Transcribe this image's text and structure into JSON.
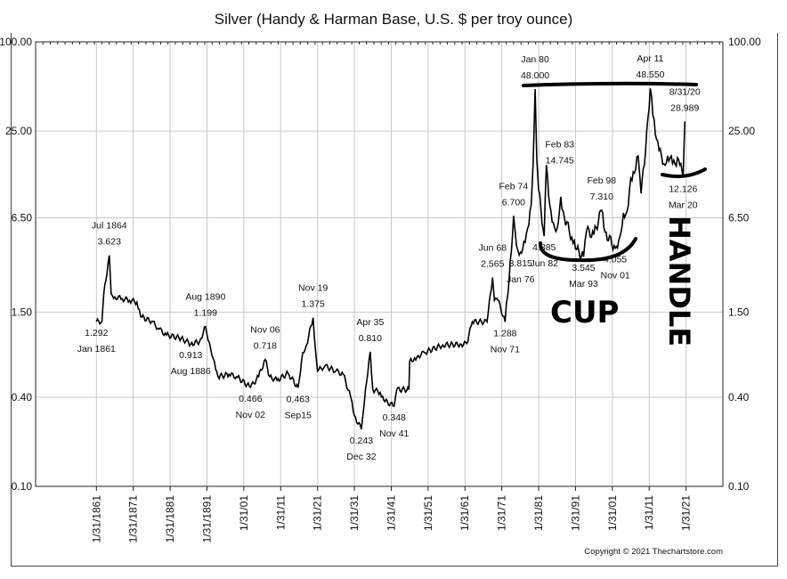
{
  "chart_data": {
    "type": "line",
    "title": "Silver (Handy & Harman Base, U.S. $ per troy ounce)",
    "xlabel": "",
    "ylabel": "",
    "y_scale": "log",
    "ylim": [
      0.1,
      100
    ],
    "xlim": [
      1844.5,
      2031
    ],
    "grid": true,
    "y_ticks": [
      "100.00",
      "25.00",
      "6.50",
      "1.50",
      "0.40",
      "0.10"
    ],
    "y_tick_values": [
      100,
      25,
      6.5,
      1.5,
      0.4,
      0.1
    ],
    "x_ticks": [
      "1/31/1861",
      "1/31/1871",
      "1/31/1881",
      "1/31/1891",
      "1/31/01",
      "1/31/11",
      "1/31/21",
      "1/31/31",
      "1/31/41",
      "1/31/51",
      "1/31/61",
      "1/31/71",
      "1/31/81",
      "1/31/91",
      "1/31/01",
      "1/31/11",
      "1/31/21"
    ],
    "x_tick_values": [
      1861,
      1871,
      1881,
      1891,
      1901,
      1911,
      1921,
      1931,
      1941,
      1951,
      1961,
      1971,
      1981,
      1991,
      2001,
      2011,
      2021
    ],
    "series": [
      {
        "color": "#000000",
        "x": [
          1861,
          1862.5,
          1863,
          1864.5,
          1865,
          1866,
          1868,
          1870,
          1872,
          1873,
          1876,
          1878,
          1880,
          1884,
          1886.6,
          1889,
          1890.6,
          1892,
          1893,
          1894,
          1897,
          1899,
          1902.8,
          1905,
          1906.8,
          1908,
          1910,
          1913,
          1915.7,
          1917,
          1918,
          1919.8,
          1920.5,
          1921,
          1923,
          1926,
          1928,
          1930,
          1931,
          1932.9,
          1934,
          1935.3,
          1936,
          1938,
          1939,
          1941.8,
          1942.5,
          1945.8,
          1946,
          1947,
          1948,
          1950,
          1955,
          1960,
          1961.5,
          1963,
          1967,
          1968.5,
          1969,
          1970,
          1971.9,
          1973,
          1974.2,
          1975,
          1976.1,
          1977,
          1978,
          1979,
          1979.5,
          1980.05,
          1980.5,
          1981,
          1982.5,
          1983.1,
          1984,
          1985,
          1986,
          1987,
          1988,
          1990,
          1991,
          1993.2,
          1994,
          1996,
          1998.1,
          1999,
          2001.8,
          2003,
          2004,
          2005,
          2006,
          2007,
          2008,
          2008.8,
          2010,
          2011.3,
          2012,
          2013,
          2014,
          2015,
          2016,
          2017,
          2018,
          2019,
          2020.2,
          2020.67
        ],
        "y": [
          1.292,
          1.3,
          2.0,
          3.623,
          2.0,
          1.9,
          1.85,
          1.8,
          1.75,
          1.4,
          1.3,
          1.15,
          1.05,
          1.0,
          0.913,
          0.95,
          1.199,
          0.85,
          0.7,
          0.55,
          0.57,
          0.55,
          0.466,
          0.55,
          0.718,
          0.55,
          0.52,
          0.58,
          0.463,
          0.8,
          0.9,
          1.375,
          0.8,
          0.6,
          0.65,
          0.6,
          0.57,
          0.4,
          0.3,
          0.243,
          0.45,
          0.81,
          0.45,
          0.43,
          0.38,
          0.348,
          0.45,
          0.45,
          0.7,
          0.7,
          0.75,
          0.8,
          0.9,
          0.91,
          0.92,
          1.29,
          1.29,
          2.565,
          1.8,
          1.8,
          1.288,
          2.5,
          6.7,
          4.2,
          3.815,
          4.5,
          5.5,
          8,
          15,
          48,
          16,
          10,
          4.885,
          14.745,
          8,
          6,
          5.5,
          9,
          6.5,
          4.8,
          4,
          3.545,
          5.3,
          5.0,
          7.31,
          5.2,
          4.055,
          4.8,
          7,
          7.2,
          12,
          13,
          17,
          9.5,
          18,
          48.55,
          32,
          22,
          19,
          15,
          17,
          17,
          15,
          16,
          12.126,
          28.989
        ]
      }
    ],
    "annotations": [
      {
        "date": "Jan 1861",
        "value": "1.292",
        "x": 1861,
        "y": 1.292,
        "pos": "below"
      },
      {
        "date": "Jul 1864",
        "value": "3.623",
        "x": 1864.5,
        "y": 3.623,
        "pos": "above"
      },
      {
        "date": "Aug 1886",
        "value": "0.913",
        "x": 1886.6,
        "y": 0.913,
        "pos": "below"
      },
      {
        "date": "Aug 1890",
        "value": "1.199",
        "x": 1890.6,
        "y": 1.199,
        "pos": "above"
      },
      {
        "date": "Nov 02",
        "value": "0.466",
        "x": 1902.8,
        "y": 0.466,
        "pos": "below"
      },
      {
        "date": "Nov 06",
        "value": "0.718",
        "x": 1906.8,
        "y": 0.718,
        "pos": "above"
      },
      {
        "date": "Sep15",
        "value": "0.463",
        "x": 1915.7,
        "y": 0.463,
        "pos": "below"
      },
      {
        "date": "Nov 19",
        "value": "1.375",
        "x": 1919.8,
        "y": 1.375,
        "pos": "above"
      },
      {
        "date": "Dec 32",
        "value": "0.243",
        "x": 1932.9,
        "y": 0.243,
        "pos": "below"
      },
      {
        "date": "Apr 35",
        "value": "0.810",
        "x": 1935.3,
        "y": 0.81,
        "pos": "above"
      },
      {
        "date": "Nov 41",
        "value": "0.348",
        "x": 1941.8,
        "y": 0.348,
        "pos": "below"
      },
      {
        "date": "Jun 68",
        "value": "2.565",
        "x": 1968.5,
        "y": 2.565,
        "pos": "above"
      },
      {
        "date": "Nov 71",
        "value": "1.288",
        "x": 1971.9,
        "y": 1.288,
        "pos": "below"
      },
      {
        "date": "Feb 74",
        "value": "6.700",
        "x": 1974.2,
        "y": 6.7,
        "pos": "above"
      },
      {
        "date": "Jan 76",
        "value": "3.815",
        "x": 1976.1,
        "y": 3.815,
        "pos": "below"
      },
      {
        "date": "Jan 80",
        "value": "48.000",
        "x": 1980.05,
        "y": 48,
        "pos": "above"
      },
      {
        "date": "Jun 82",
        "value": "4.885",
        "x": 1982.5,
        "y": 4.885,
        "pos": "below"
      },
      {
        "date": "Feb 83",
        "value": "14.745",
        "x": 1983.1,
        "y": 14.745,
        "pos": "right"
      },
      {
        "date": "Mar 93",
        "value": "3.545",
        "x": 1993.2,
        "y": 3.545,
        "pos": "below"
      },
      {
        "date": "Feb 98",
        "value": "7.310",
        "x": 1998.1,
        "y": 7.31,
        "pos": "above"
      },
      {
        "date": "Nov 01",
        "value": "4.055",
        "x": 2001.8,
        "y": 4.055,
        "pos": "below"
      },
      {
        "date": "Apr 11",
        "value": "48.550",
        "x": 2011.3,
        "y": 48.55,
        "pos": "above"
      },
      {
        "date": "8/31/20",
        "value": "28.989",
        "x": 2020.67,
        "y": 28.989,
        "pos": "above"
      },
      {
        "date": "Mar 20",
        "value": "12.126",
        "x": 2020.2,
        "y": 12.126,
        "pos": "below"
      }
    ]
  },
  "handwriting": {
    "cup": "CUP",
    "handle": "HANDLE"
  },
  "copyright": "Copyright © 2021 Thechartstore.com"
}
